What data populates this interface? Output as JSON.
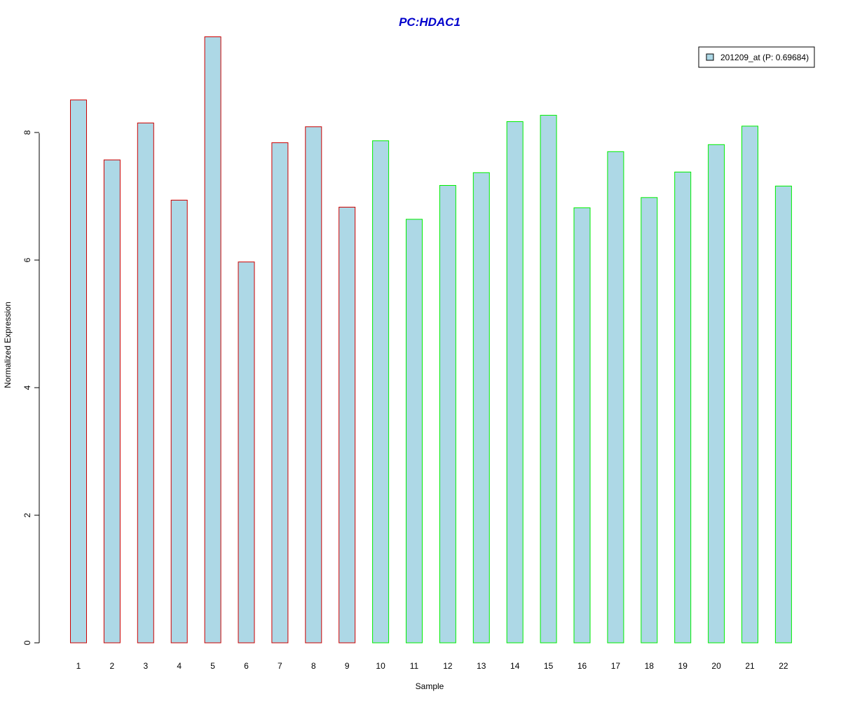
{
  "chart_data": {
    "type": "bar",
    "title": "PC:HDAC1",
    "xlabel": "Sample",
    "ylabel": "Normalized Expression",
    "categories": [
      "1",
      "2",
      "3",
      "4",
      "5",
      "6",
      "7",
      "8",
      "9",
      "10",
      "11",
      "12",
      "13",
      "14",
      "15",
      "16",
      "17",
      "18",
      "19",
      "20",
      "21",
      "22"
    ],
    "series": [
      {
        "name": "201209_at (P: 0.69684)",
        "values": [
          8.51,
          7.57,
          8.15,
          6.94,
          9.5,
          5.97,
          7.84,
          8.09,
          6.83,
          7.87,
          6.64,
          7.17,
          7.37,
          8.17,
          8.27,
          6.82,
          7.7,
          6.98,
          7.38,
          7.81,
          8.1,
          7.16
        ]
      }
    ],
    "bar_fill": "#add8e6",
    "bar_borders": [
      "#cc0000",
      "#cc0000",
      "#cc0000",
      "#cc0000",
      "#cc0000",
      "#cc0000",
      "#cc0000",
      "#cc0000",
      "#cc0000",
      "#00ee00",
      "#00ee00",
      "#00ee00",
      "#00ee00",
      "#00ee00",
      "#00ee00",
      "#00ee00",
      "#00ee00",
      "#00ee00",
      "#00ee00",
      "#00ee00",
      "#00ee00",
      "#00ee00"
    ],
    "yticks": [
      "0",
      "2",
      "4",
      "6",
      "8"
    ],
    "ylim": [
      0,
      9.5
    ],
    "legend_position": "top-right",
    "grid": false,
    "title_color": "#0000cc"
  }
}
